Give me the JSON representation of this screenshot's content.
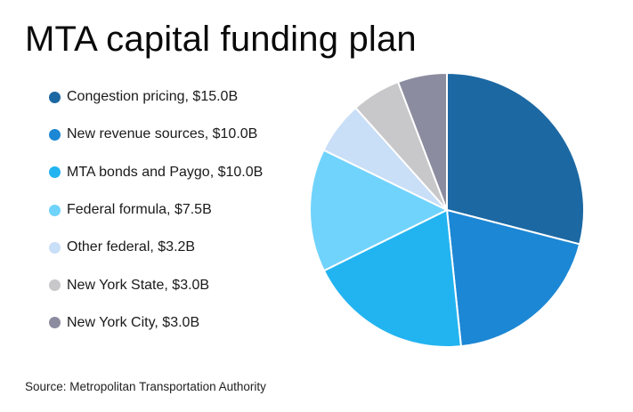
{
  "title": "MTA capital funding plan",
  "source": "Source: Metropolitan Transportation Authority",
  "legend": [
    {
      "label": "Congestion pricing, $15.0B",
      "color": "#1c68a3"
    },
    {
      "label": "New revenue sources, $10.0B",
      "color": "#1c87d4"
    },
    {
      "label": "MTA bonds and Paygo, $10.0B",
      "color": "#22b4f0"
    },
    {
      "label": "Federal formula, $7.5B",
      "color": "#70d3fc"
    },
    {
      "label": "Other federal, $3.2B",
      "color": "#c9def7"
    },
    {
      "label": "New York State, $3.0B",
      "color": "#c8c8cb"
    },
    {
      "label": "New York City, $3.0B",
      "color": "#8c8ca0"
    }
  ],
  "chart_data": {
    "type": "pie",
    "title": "MTA capital funding plan",
    "unit": "$B",
    "categories": [
      "Congestion pricing",
      "New revenue sources",
      "MTA bonds and Paygo",
      "Federal formula",
      "Other federal",
      "New York State",
      "New York City"
    ],
    "values": [
      15.0,
      10.0,
      10.0,
      7.5,
      3.2,
      3.0,
      3.0
    ],
    "colors": [
      "#1c68a3",
      "#1c87d4",
      "#22b4f0",
      "#70d3fc",
      "#c9def7",
      "#c8c8cb",
      "#8c8ca0"
    ],
    "start_angle": "12 o'clock",
    "direction": "clockwise",
    "legend_position": "left",
    "source": "Source: Metropolitan Transportation Authority"
  }
}
